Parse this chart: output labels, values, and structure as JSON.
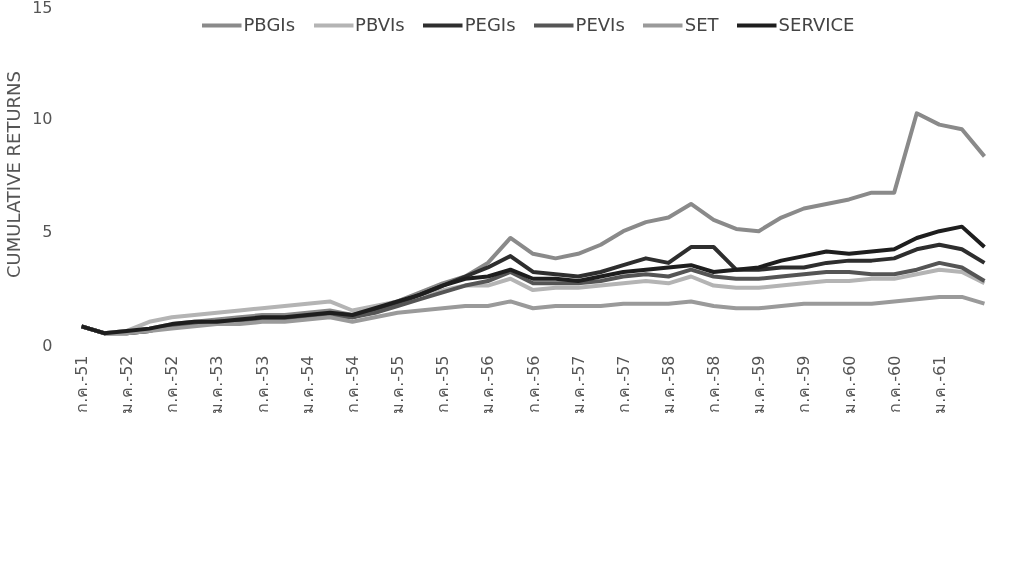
{
  "chart_data": {
    "type": "line",
    "ylabel": "CUMULATIVE RETURNS",
    "ylim": [
      0,
      15
    ],
    "yticks": [
      0,
      5,
      10,
      15
    ],
    "grid": false,
    "legend": "top",
    "line_style": "solid",
    "marker": "none",
    "categories": [
      "ก.ค.-51",
      null,
      "ม.ค.-52",
      null,
      "ก.ค.-52",
      null,
      "ม.ค.-53",
      null,
      "ก.ค.-53",
      null,
      "ม.ค.-54",
      null,
      "ก.ค.-54",
      null,
      "ม.ค.-55",
      null,
      "ก.ค.-55",
      null,
      "ม.ค.-56",
      null,
      "ก.ค.-56",
      null,
      "ม.ค.-57",
      null,
      "ก.ค.-57",
      null,
      "ม.ค.-58",
      null,
      "ก.ค.-58",
      null,
      "ม.ค.-59",
      null,
      "ก.ค.-59",
      null,
      "ม.ค.-60",
      null,
      "ก.ค.-60",
      null,
      "ม.ค.-61",
      null,
      null
    ],
    "series": [
      {
        "name": "PBGIs",
        "color": "#8a8a8a",
        "values": [
          0.8,
          0.5,
          0.6,
          0.7,
          0.9,
          1.0,
          1.1,
          1.2,
          1.3,
          1.3,
          1.4,
          1.5,
          1.3,
          1.6,
          1.9,
          2.3,
          2.7,
          3.0,
          3.6,
          4.7,
          4.0,
          3.8,
          4.0,
          4.4,
          5.0,
          5.4,
          5.6,
          6.2,
          5.5,
          5.1,
          5.0,
          5.6,
          6.0,
          6.2,
          6.4,
          6.7,
          6.7,
          10.2,
          9.7,
          9.5,
          8.3
        ]
      },
      {
        "name": "PBVIs",
        "color": "#b4b4b4",
        "values": [
          0.8,
          0.5,
          0.6,
          1.0,
          1.2,
          1.3,
          1.4,
          1.5,
          1.6,
          1.7,
          1.8,
          1.9,
          1.5,
          1.7,
          1.9,
          2.2,
          2.4,
          2.6,
          2.6,
          2.9,
          2.4,
          2.5,
          2.5,
          2.6,
          2.7,
          2.8,
          2.7,
          3.0,
          2.6,
          2.5,
          2.5,
          2.6,
          2.7,
          2.8,
          2.8,
          2.9,
          2.9,
          3.1,
          3.3,
          3.2,
          2.7
        ]
      },
      {
        "name": "PEGIs",
        "color": "#2e2e2e",
        "values": [
          0.8,
          0.5,
          0.5,
          0.6,
          0.8,
          0.9,
          1.0,
          1.0,
          1.1,
          1.1,
          1.2,
          1.3,
          1.2,
          1.5,
          1.8,
          2.2,
          2.6,
          3.0,
          3.4,
          3.9,
          3.2,
          3.1,
          3.0,
          3.2,
          3.5,
          3.8,
          3.6,
          4.3,
          4.3,
          3.3,
          3.3,
          3.4,
          3.4,
          3.6,
          3.7,
          3.7,
          3.8,
          4.2,
          4.4,
          4.2,
          3.6
        ]
      },
      {
        "name": "PEVIs",
        "color": "#555555",
        "values": [
          0.8,
          0.5,
          0.5,
          0.6,
          0.8,
          0.9,
          1.0,
          1.0,
          1.1,
          1.1,
          1.2,
          1.3,
          1.2,
          1.4,
          1.7,
          2.0,
          2.3,
          2.6,
          2.8,
          3.2,
          2.7,
          2.7,
          2.7,
          2.8,
          3.0,
          3.1,
          3.0,
          3.3,
          3.0,
          2.9,
          2.9,
          3.0,
          3.1,
          3.2,
          3.2,
          3.1,
          3.1,
          3.3,
          3.6,
          3.4,
          2.8
        ]
      },
      {
        "name": "SET",
        "color": "#9a9a9a",
        "values": [
          0.8,
          0.5,
          0.5,
          0.6,
          0.7,
          0.8,
          0.9,
          0.9,
          1.0,
          1.0,
          1.1,
          1.2,
          1.0,
          1.2,
          1.4,
          1.5,
          1.6,
          1.7,
          1.7,
          1.9,
          1.6,
          1.7,
          1.7,
          1.7,
          1.8,
          1.8,
          1.8,
          1.9,
          1.7,
          1.6,
          1.6,
          1.7,
          1.8,
          1.8,
          1.8,
          1.8,
          1.9,
          2.0,
          2.1,
          2.1,
          1.8
        ]
      },
      {
        "name": "SERVICE",
        "color": "#1e1e1e",
        "values": [
          0.8,
          0.5,
          0.6,
          0.7,
          0.9,
          1.0,
          1.0,
          1.1,
          1.2,
          1.2,
          1.3,
          1.4,
          1.3,
          1.6,
          1.9,
          2.2,
          2.6,
          2.9,
          3.0,
          3.3,
          2.9,
          2.9,
          2.8,
          3.0,
          3.2,
          3.3,
          3.4,
          3.5,
          3.2,
          3.3,
          3.4,
          3.7,
          3.9,
          4.1,
          4.0,
          4.1,
          4.2,
          4.7,
          5.0,
          5.2,
          4.3
        ]
      }
    ]
  }
}
